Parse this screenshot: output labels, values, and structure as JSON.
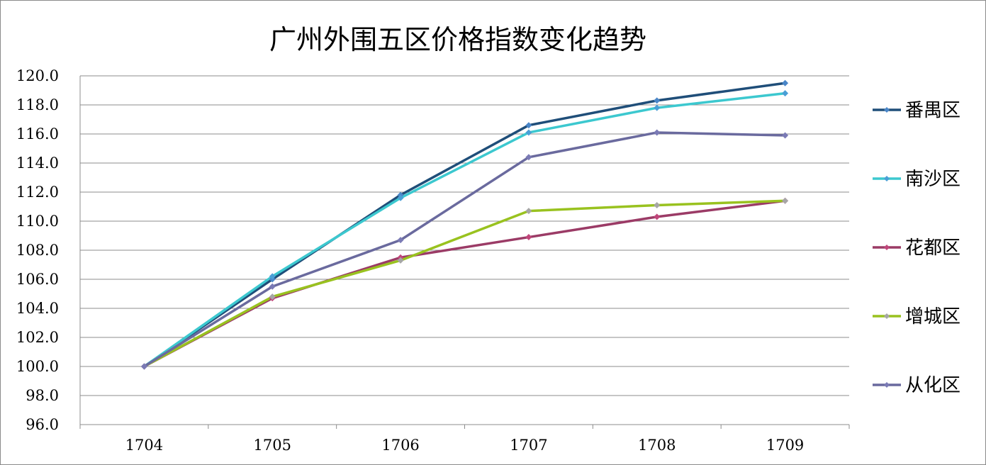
{
  "chart_data": {
    "type": "line",
    "title": "广州外围五区价格指数变化趋势",
    "categories": [
      "1704",
      "1705",
      "1706",
      "1707",
      "1708",
      "1709"
    ],
    "ylim": [
      96.0,
      120.0
    ],
    "yticks": [
      "96.0",
      "98.0",
      "100.0",
      "102.0",
      "104.0",
      "106.0",
      "108.0",
      "110.0",
      "112.0",
      "114.0",
      "116.0",
      "118.0",
      "120.0"
    ],
    "grid": true,
    "legend_position": "right",
    "series": [
      {
        "name": "番禺区",
        "color": "#1f4e79",
        "marker_color": "#4a86c8",
        "values": [
          100.0,
          106.0,
          111.8,
          116.6,
          118.3,
          119.5
        ]
      },
      {
        "name": "南沙区",
        "color": "#3cc8cf",
        "marker_color": "#4a9fd6",
        "values": [
          100.0,
          106.2,
          111.6,
          116.1,
          117.8,
          118.8
        ]
      },
      {
        "name": "花都区",
        "color": "#9b3b66",
        "marker_color": "#c0467a",
        "values": [
          100.0,
          104.7,
          107.5,
          108.9,
          110.3,
          111.4
        ]
      },
      {
        "name": "增城区",
        "color": "#99c21f",
        "marker_color": "#a6a6a6",
        "values": [
          100.0,
          104.8,
          107.3,
          110.7,
          111.1,
          111.4
        ]
      },
      {
        "name": "从化区",
        "color": "#6a6a9e",
        "marker_color": "#7a7ab5",
        "values": [
          100.0,
          105.5,
          108.7,
          114.4,
          116.1,
          115.9
        ]
      }
    ]
  }
}
